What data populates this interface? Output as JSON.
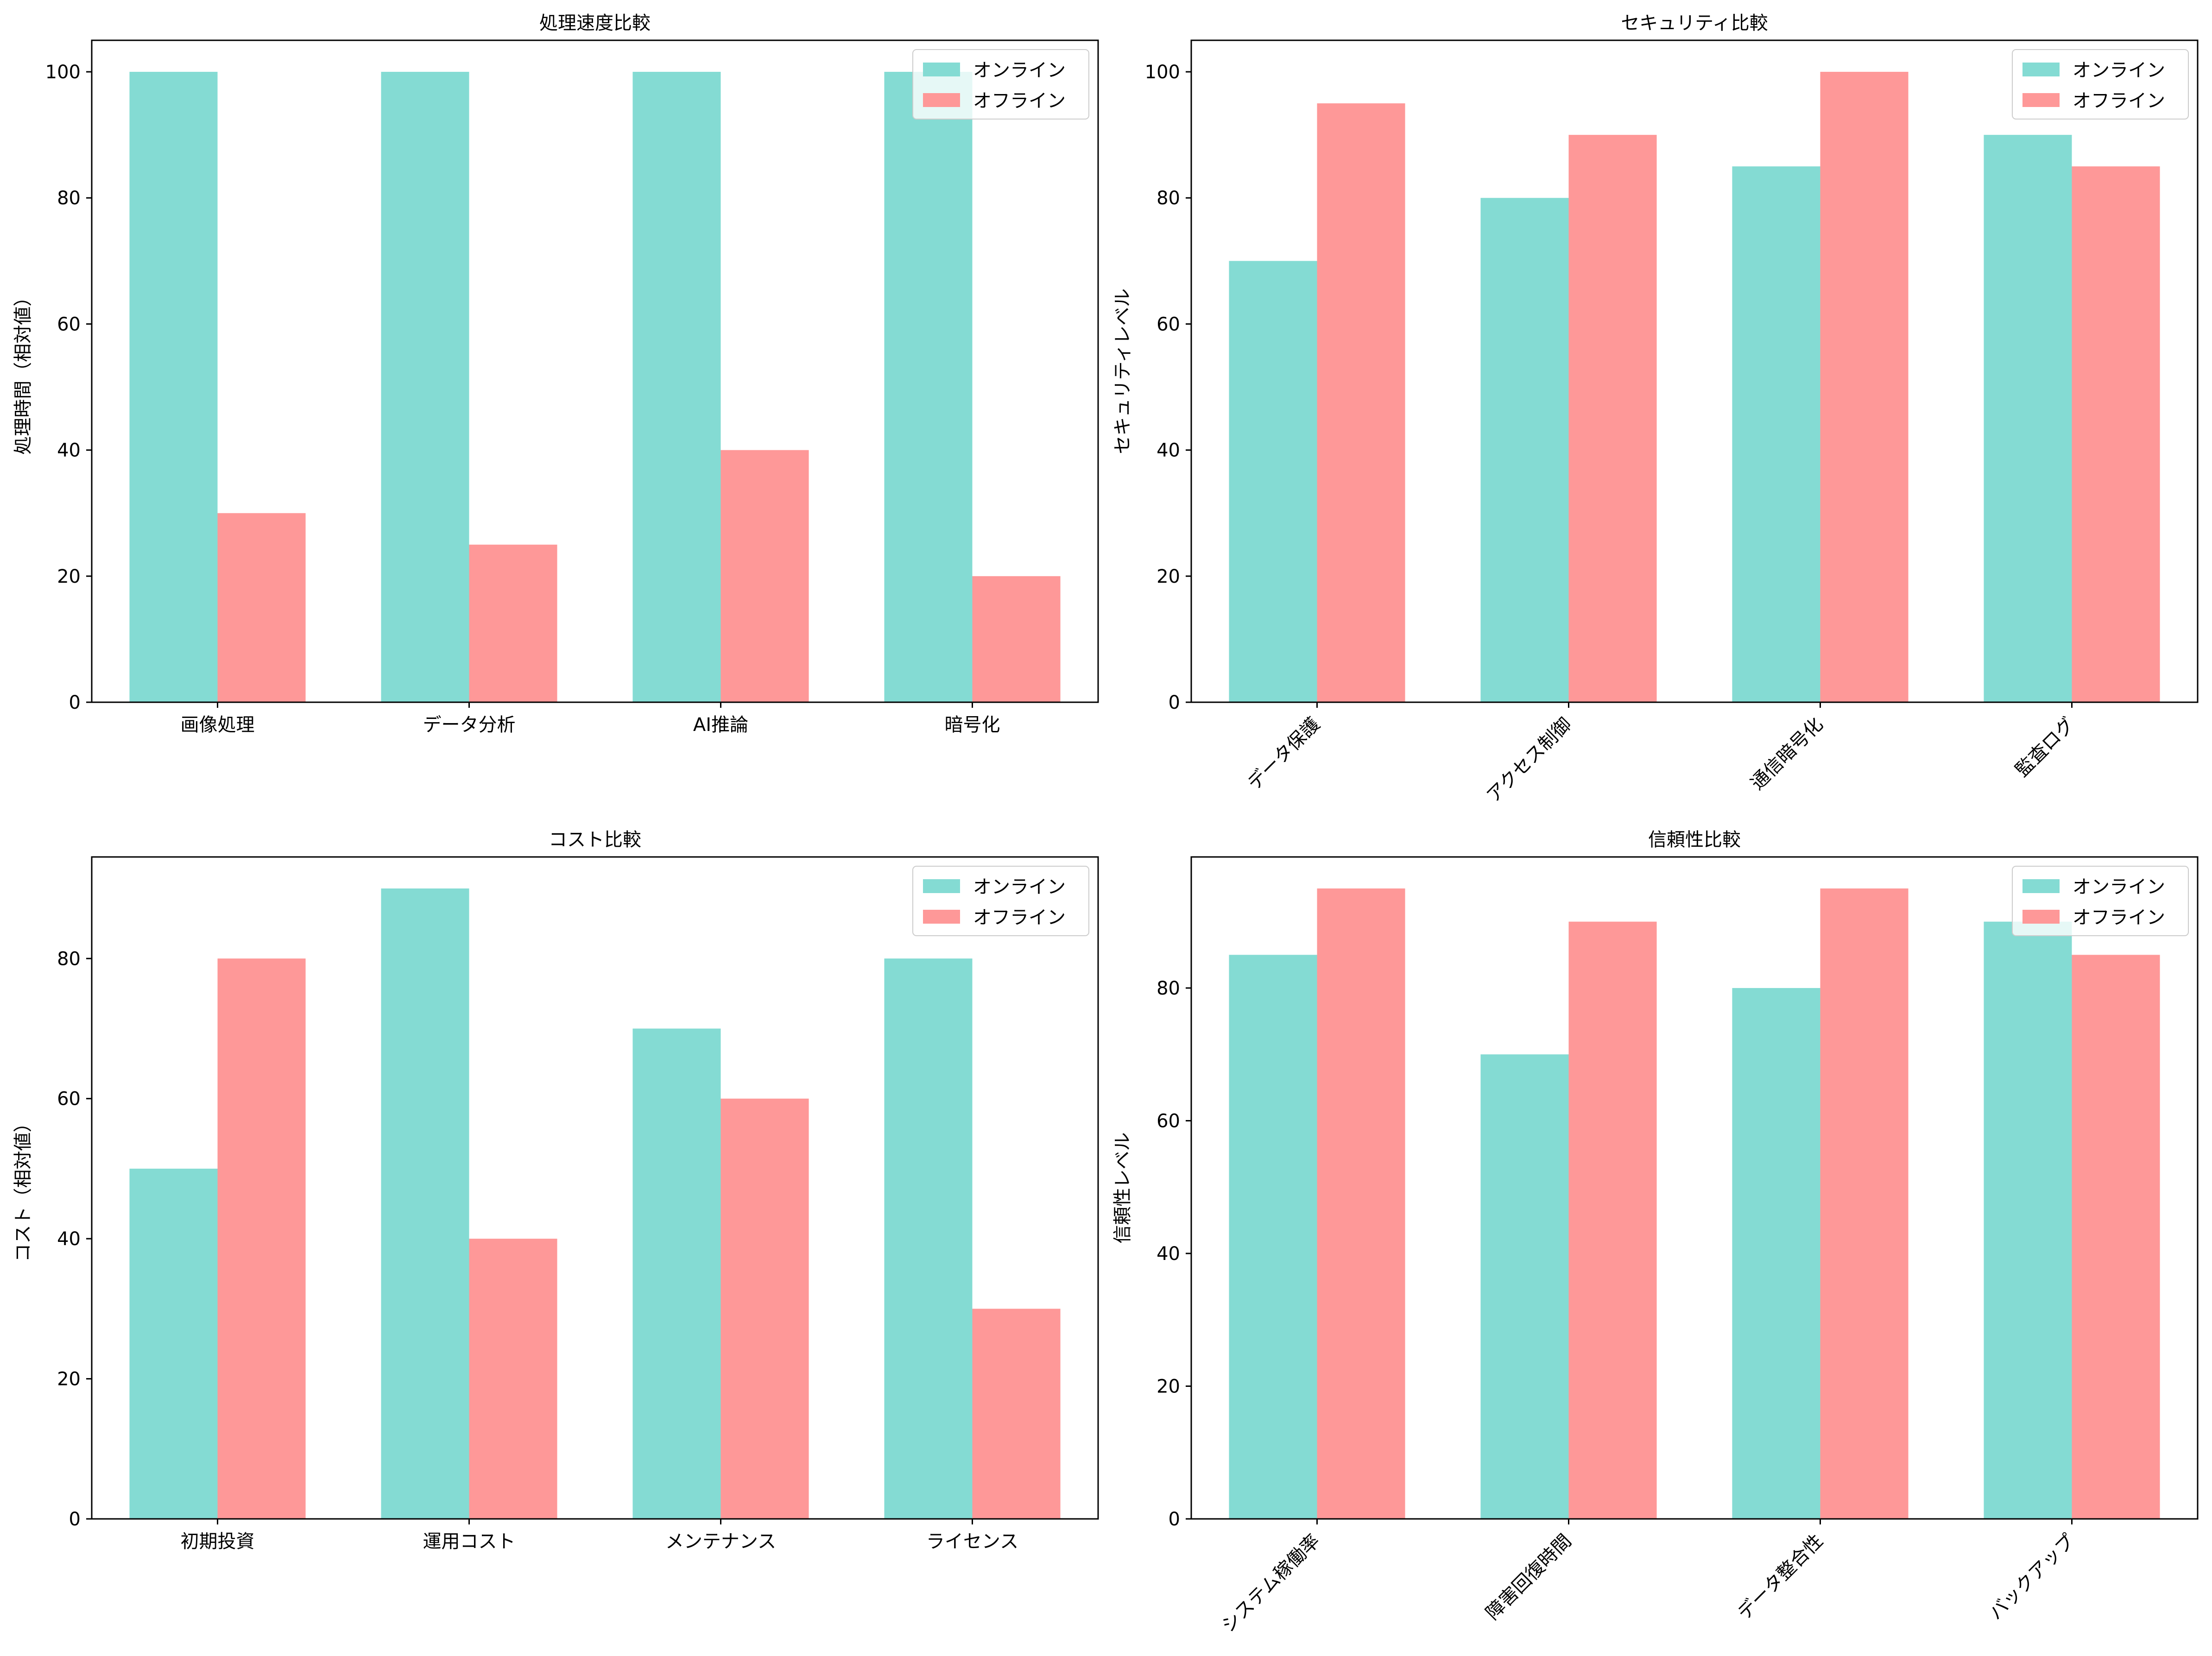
{
  "colors": {
    "online": "#84dbd3",
    "offline": "#fe9898"
  },
  "chart_data": [
    {
      "type": "bar",
      "title": "処理速度比較",
      "ylabel": "処理時間（相対値）",
      "xlabel": "",
      "categories": [
        "画像処理",
        "データ分析",
        "AI推論",
        "暗号化"
      ],
      "series": [
        {
          "name": "オンライン",
          "values": [
            100,
            100,
            100,
            100
          ]
        },
        {
          "name": "オフライン",
          "values": [
            30,
            25,
            40,
            20
          ]
        }
      ],
      "ylim": [
        0,
        105
      ],
      "yticks": [
        0,
        20,
        40,
        60,
        80,
        100
      ],
      "xtick_rotation": 0,
      "legend": "top-right"
    },
    {
      "type": "bar",
      "title": "セキュリティ比較",
      "ylabel": "セキュリティレベル",
      "xlabel": "",
      "categories": [
        "データ保護",
        "アクセス制御",
        "通信暗号化",
        "監査ログ"
      ],
      "series": [
        {
          "name": "オンライン",
          "values": [
            70,
            80,
            85,
            90
          ]
        },
        {
          "name": "オフライン",
          "values": [
            95,
            90,
            100,
            85
          ]
        }
      ],
      "ylim": [
        0,
        105
      ],
      "yticks": [
        0,
        20,
        40,
        60,
        80,
        100
      ],
      "xtick_rotation": 45,
      "legend": "top-right"
    },
    {
      "type": "bar",
      "title": "コスト比較",
      "ylabel": "コスト（相対値）",
      "xlabel": "",
      "categories": [
        "初期投資",
        "運用コスト",
        "メンテナンス",
        "ライセンス"
      ],
      "series": [
        {
          "name": "オンライン",
          "values": [
            50,
            90,
            70,
            80
          ]
        },
        {
          "name": "オフライン",
          "values": [
            80,
            40,
            60,
            30
          ]
        }
      ],
      "ylim": [
        0,
        94.5
      ],
      "yticks": [
        0,
        20,
        40,
        60,
        80
      ],
      "xtick_rotation": 0,
      "legend": "top-right"
    },
    {
      "type": "bar",
      "title": "信頼性比較",
      "ylabel": "信頼性レベル",
      "xlabel": "",
      "categories": [
        "システム稼働率",
        "障害回復時間",
        "データ整合性",
        "バックアップ"
      ],
      "series": [
        {
          "name": "オンライン",
          "values": [
            85,
            70,
            80,
            90
          ]
        },
        {
          "name": "オフライン",
          "values": [
            95,
            90,
            95,
            85
          ]
        }
      ],
      "ylim": [
        0,
        99.75
      ],
      "yticks": [
        0,
        20,
        40,
        60,
        80
      ],
      "xtick_rotation": 45,
      "legend": "top-right"
    }
  ]
}
